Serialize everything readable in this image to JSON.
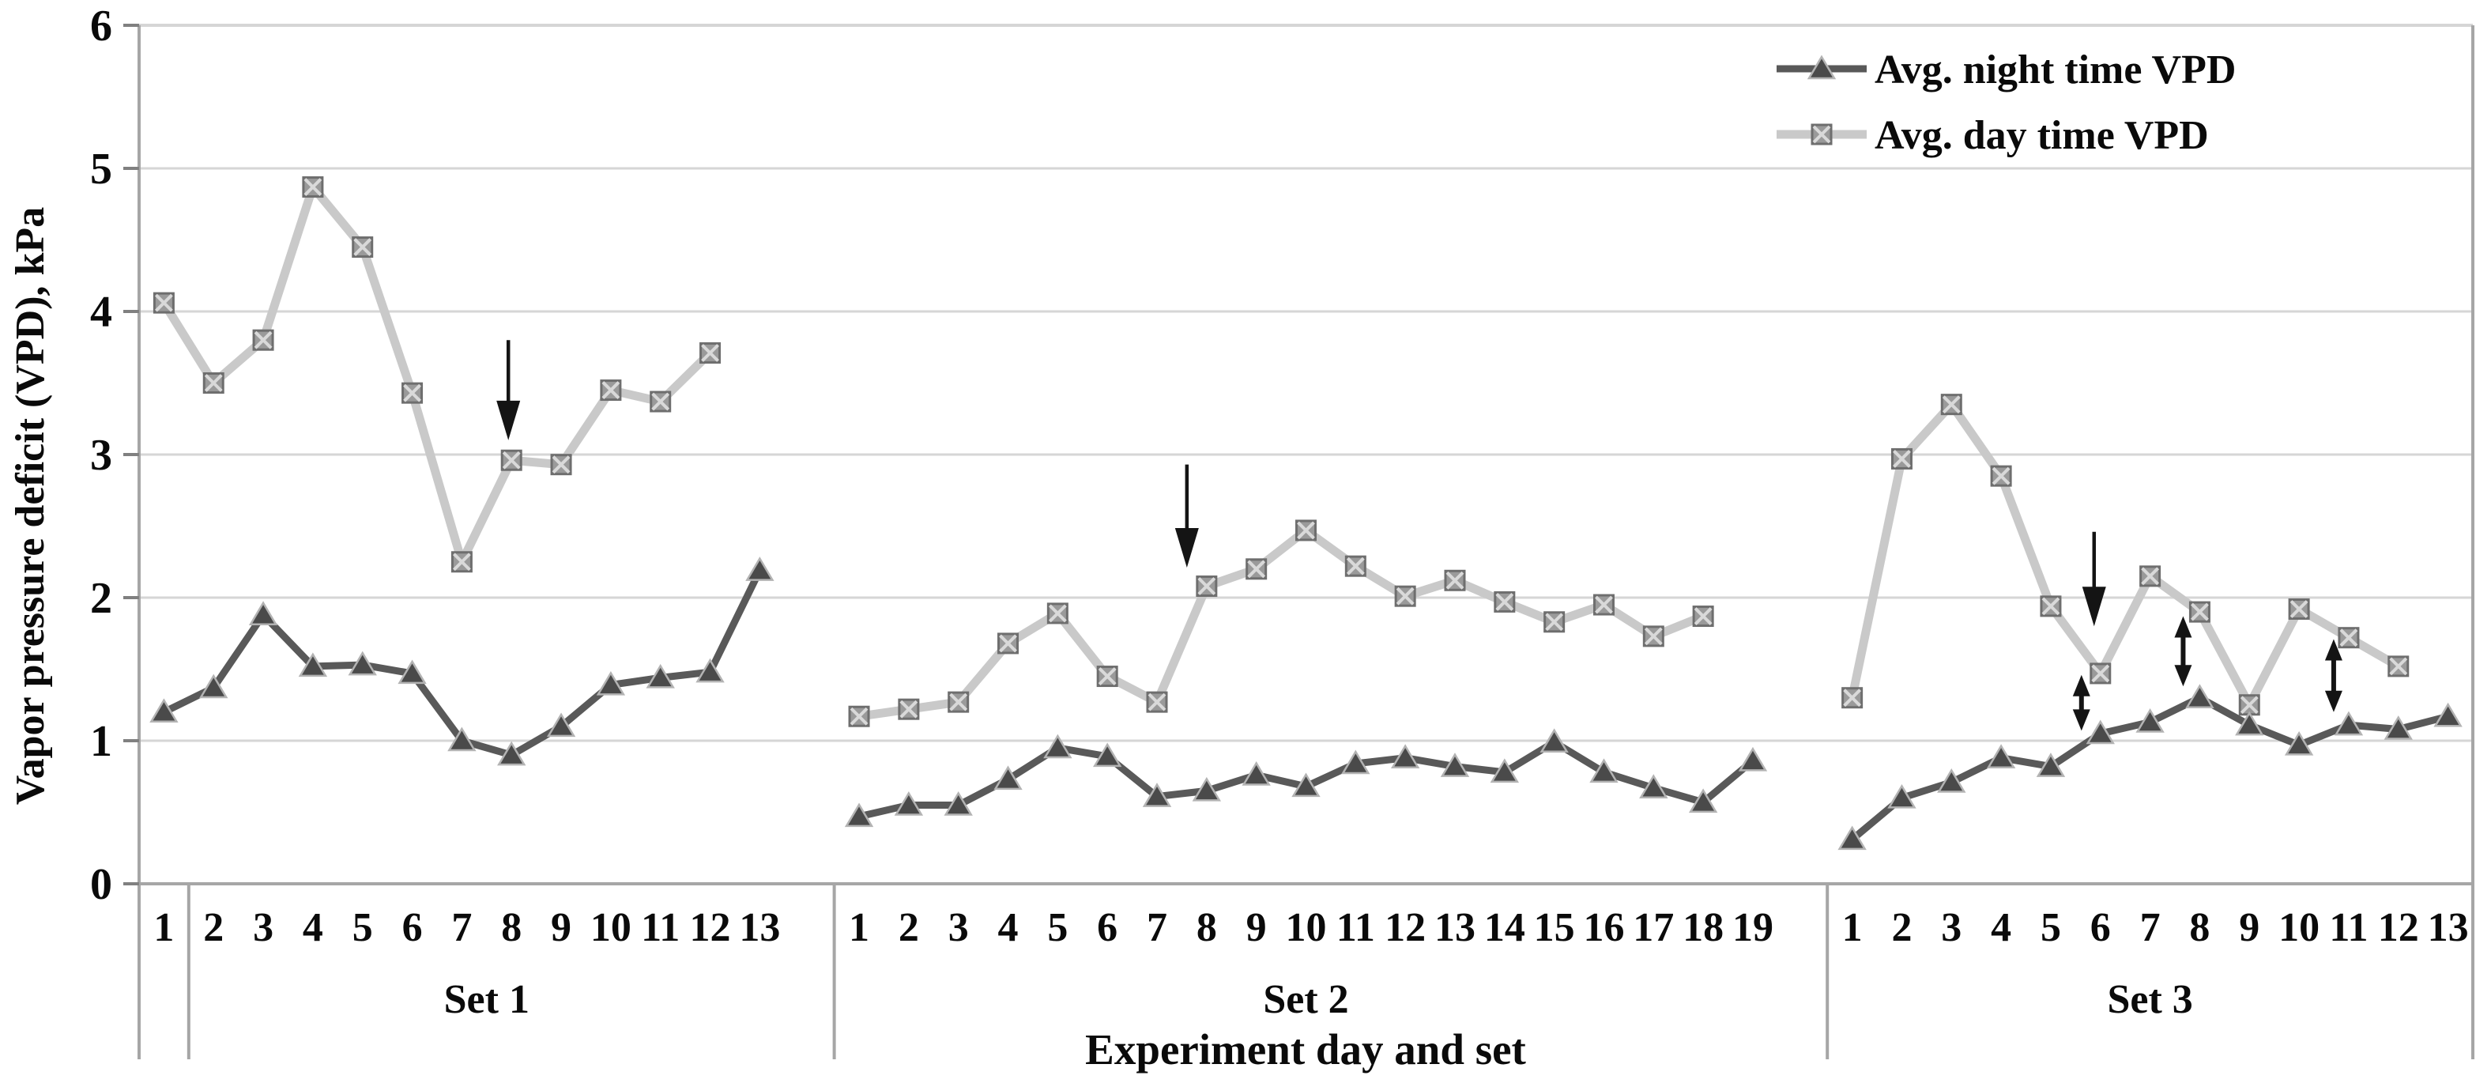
{
  "chart_data": {
    "type": "line",
    "title": "",
    "xlabel": "Experiment day and set",
    "ylabel": "Vapor pressure deficit (VPD), kPa",
    "ylim": [
      0,
      6
    ],
    "yticks": [
      "6",
      "5",
      "4",
      "3",
      "2",
      "1",
      "0"
    ],
    "grid": "horizontal gridlines at integer kPa values",
    "legend_position": "top-right inside plot area",
    "sets": [
      {
        "label": "Set 1",
        "day_labels": [
          "1",
          "2",
          "3",
          "4",
          "5",
          "6",
          "7",
          "8",
          "9",
          "10",
          "11",
          "12",
          "13"
        ]
      },
      {
        "label": "Set 2",
        "day_labels": [
          "1",
          "2",
          "3",
          "4",
          "5",
          "6",
          "7",
          "8",
          "9",
          "10",
          "11",
          "12",
          "13",
          "14",
          "15",
          "16",
          "17",
          "18",
          "19"
        ]
      },
      {
        "label": "Set 3",
        "day_labels": [
          "1",
          "2",
          "3",
          "4",
          "5",
          "6",
          "7",
          "8",
          "9",
          "10",
          "11",
          "12",
          "13"
        ]
      }
    ],
    "series": [
      {
        "name": "Avg. night time VPD",
        "marker": "filled-triangle",
        "line_color": "#595959",
        "marker_color": "#4a4a4a",
        "marker_edge_color": "#b3b3b3",
        "values": {
          "set1": [
            1.2,
            1.37,
            1.88,
            1.52,
            1.53,
            1.47,
            1.0,
            0.9,
            1.1,
            1.39,
            1.44,
            1.48,
            2.19
          ],
          "set2": [
            0.47,
            0.55,
            0.55,
            0.73,
            0.95,
            0.89,
            0.61,
            0.65,
            0.76,
            0.68,
            0.84,
            0.88,
            0.82,
            0.78,
            0.99,
            0.78,
            0.67,
            0.57,
            0.86
          ],
          "set3": [
            0.31,
            0.6,
            0.71,
            0.88,
            0.82,
            1.05,
            1.13,
            1.3,
            1.11,
            0.97,
            1.11,
            1.08,
            1.17
          ]
        }
      },
      {
        "name": "Avg. day time VPD",
        "marker": "square-with-x",
        "line_color": "#c9c9c9",
        "marker_color": "#9a9a9a",
        "marker_edge_color": "#6e6e6e",
        "marker_x_color": "#d9d9d9",
        "values": {
          "set1": [
            4.06,
            3.5,
            3.8,
            4.87,
            4.45,
            3.43,
            2.25,
            2.96,
            2.93,
            3.45,
            3.37,
            3.71,
            null
          ],
          "set2": [
            1.17,
            1.22,
            1.27,
            1.68,
            1.89,
            1.45,
            1.27,
            2.08,
            2.2,
            2.47,
            2.22,
            2.01,
            2.12,
            1.97,
            1.83,
            1.95,
            1.73,
            1.87,
            null
          ],
          "set3": [
            1.3,
            2.97,
            3.35,
            2.85,
            1.94,
            1.47,
            2.15,
            1.9,
            1.25,
            1.92,
            1.72,
            1.52,
            null
          ]
        }
      }
    ],
    "annotations": {
      "down_arrows": [
        {
          "set": 1,
          "day": 8,
          "from_kpa": 3.8,
          "to_kpa": 3.1,
          "dx": -4
        },
        {
          "set": 2,
          "day": 8,
          "from_kpa": 2.93,
          "to_kpa": 2.21,
          "dx": -25
        },
        {
          "set": 3,
          "day": 6,
          "from_kpa": 2.46,
          "to_kpa": 1.8,
          "dx": -8
        }
      ],
      "double_headed_arrows": [
        {
          "set": 3,
          "day": 6,
          "top_kpa": 1.46,
          "bottom_kpa": 1.07,
          "dx": -24
        },
        {
          "set": 3,
          "day": 8,
          "top_kpa": 1.87,
          "bottom_kpa": 1.38,
          "dx": -21
        },
        {
          "set": 3,
          "day": 11,
          "top_kpa": 1.71,
          "bottom_kpa": 1.2,
          "dx": -19
        }
      ]
    },
    "colors": {
      "background": "#ffffff",
      "gridline": "#d6d6d6",
      "axis_line": "#a6a6a6",
      "tick": "#808080",
      "text": "#0a0a0a",
      "arrow": "#141414"
    }
  }
}
